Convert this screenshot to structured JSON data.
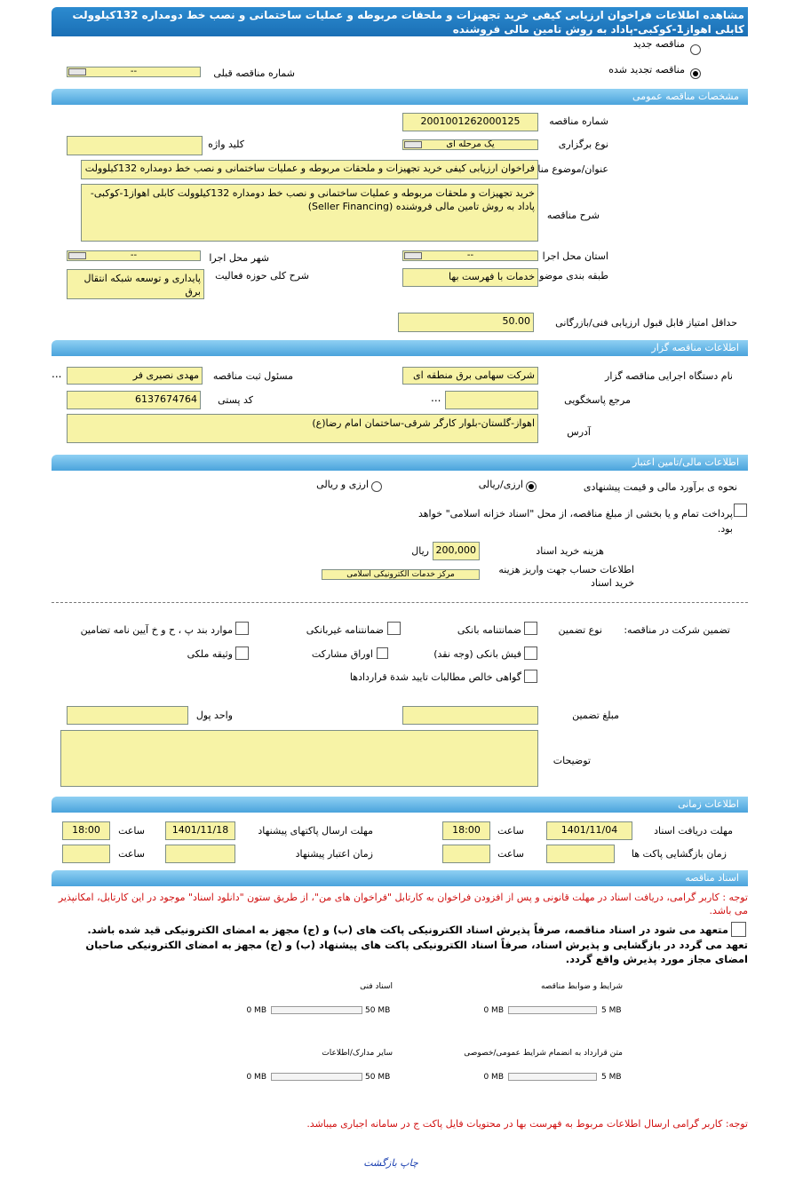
{
  "title": "مشاهده اطلاعات فراخوان ارزیابی کیفی خرید تجهیزات و ملحقات مربوطه و عملیات ساختمانی و نصب خط دومداره 132کیلوولت کابلی اهواز1-کوکبی-پاداد به روش تامین مالی فروشنده",
  "tender_type": {
    "new": "مناقصه جدید",
    "renewed": "مناقصه تجدید شده",
    "selected": "renewed",
    "prev_label": "شماره مناقصه قبلی",
    "prev_value": "--"
  },
  "general": {
    "header": "مشخصات مناقصه عمومی",
    "number_label": "شماره مناقصه",
    "number": "2001001262000125",
    "holding_label": "نوع برگزاری",
    "holding": "یک مرحله ای",
    "keyword_label": "کلید واژه",
    "keyword": "",
    "subject_label": "عنوان/موضوع مناقصه",
    "subject": "فراخوان ارزیابی کیفی خرید تجهیزات و ملحقات مربوطه و عملیات ساختمانی و نصب خط دومداره 132کیلوولت",
    "desc_label": "شرح مناقصه",
    "desc": "خرید تجهیزات و ملحقات مربوطه و عملیات ساختمانی و نصب خط دومداره 132کیلوولت کابلی اهواز1-کوکبی-پاداد به روش تامین مالی فروشنده (Seller Financing)",
    "province_label": "استان محل اجرا",
    "province": "--",
    "city_label": "شهر محل اجرا",
    "city": "--",
    "category_label": "طبقه بندی موضوعی",
    "category": "خدمات با فهرست بها",
    "activity_label": "شرح کلی حوزه فعالیت",
    "activity": "پایداری و توسعه شبکه انتقال برق",
    "min_score_label": "حداقل امتیاز قابل قبول ارزیابی فنی/بازرگانی",
    "min_score": "50.00"
  },
  "organizer": {
    "header": "اطلاعات مناقصه گزار",
    "org_label": "نام دستگاه اجرایی مناقصه گزار",
    "org": "شرکت سهامی برق منطقه ای",
    "registrar_label": "مسئول ثبت مناقصه",
    "registrar": "مهدی نصیری فر",
    "ref_label": "مرجع پاسخگویی",
    "ref": "",
    "postal_label": "کد پستی",
    "postal": "6137674764",
    "address_label": "آدرس",
    "address": "اهواز-گلستان-بلوار کارگر شرقی-ساختمان امام رضا(ع)",
    "more": "..."
  },
  "finance": {
    "header": "اطلاعات مالی/تامین اعتبار",
    "estimate_label": "نحوه ی برآورد مالی و قیمت پیشنهادی",
    "opt1": "ارزی/ریالی",
    "opt2": "ارزی و ریالی",
    "treasury": "پرداخت تمام و یا بخشی از مبلغ مناقصه، از محل \"اسناد خزانه اسلامی\" خواهد بود.",
    "doc_cost_label": "هزینه خرید اسناد",
    "doc_cost": "200,000",
    "currency": "ریال",
    "account_label": "اطلاعات حساب جهت واریز هزینه خرید اسناد",
    "account": "مرکز خدمات الکترونیکی اسلامی"
  },
  "guarantee": {
    "label": "تضمین شرکت در مناقصه:",
    "type_label": "نوع تضمین",
    "options": [
      "ضمانتنامه بانکی",
      "ضمانتنامه غیربانکی",
      "موارد بند پ ، ح و خ آیین نامه تضامین",
      "فیش بانکی (وجه نقد)",
      "اوراق مشارکت",
      "وثیقه ملکی",
      "گواهی خالص مطالبات تایید شدة قراردادها"
    ],
    "amount_label": "مبلغ تضمین",
    "unit_label": "واحد پول",
    "notes_label": "توضیحات"
  },
  "timing": {
    "header": "اطلاعات زمانی",
    "receive_label": "مهلت دریافت اسناد",
    "receive_date": "1401/11/04",
    "receive_time": "18:00",
    "send_label": "مهلت ارسال پاکتهای پیشنهاد",
    "send_date": "1401/11/18",
    "send_time": "18:00",
    "open_label": "زمان بازگشایی پاکت ها",
    "validity_label": "زمان اعتبار پیشنهاد",
    "time_label": "ساعت"
  },
  "docs": {
    "header": "اسناد مناقصه",
    "note": "توجه : کاربر گرامی، دریافت اسناد در مهلت قانونی و پس از افزودن فراخوان به کارتابل \"فراخوان های من\"، از طریق ستون \"دانلود اسناد\" موجود در این کارتابل، امکانپذیر می باشد.",
    "commit1": "متعهد می شود در اسناد مناقصه، صرفاً پذیرش اسناد الکترونیکی پاکت های (ب) و (ج) مجهز به امضای الکترونیکی قید شده باشد.",
    "commit2": "تعهد می گردد در بازگشایی و پذیرش اسناد، صرفاً اسناد الکترونیکی پاکت های پیشنهاد (ب) و (ج) مجهز به امضای الکترونیکی صاحبان امضای مجاز مورد پذیرش واقع گردد.",
    "files": [
      {
        "name": "شرایط و ضوابط مناقصه",
        "used": "0 MB",
        "max": "5 MB"
      },
      {
        "name": "اسناد فنی",
        "used": "0 MB",
        "max": "50 MB"
      },
      {
        "name": "متن قرارداد به انضمام شرایط عمومی/خصوصی",
        "used": "0 MB",
        "max": "5 MB"
      },
      {
        "name": "سایر مدارک/اطلاعات",
        "used": "0 MB",
        "max": "50 MB"
      }
    ],
    "note2": "توجه: کاربر گرامی ارسال اطلاعات مربوط به فهرست بها در محتویات فایل پاکت ج در سامانه اجباری میباشد."
  },
  "footer": {
    "print": "چاپ",
    "back": "بازگشت"
  }
}
